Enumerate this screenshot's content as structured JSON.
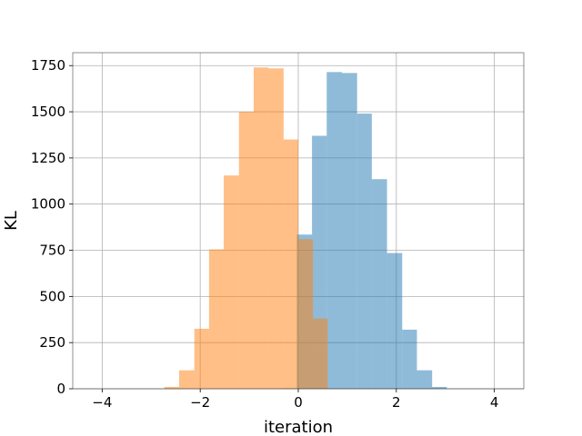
{
  "chart_data": {
    "type": "histogram",
    "xlabel": "iteration",
    "ylabel": "KL",
    "xlim": [
      -4.6,
      4.6
    ],
    "ylim": [
      0,
      1820
    ],
    "x_ticks": [
      -4,
      -2,
      0,
      2,
      4
    ],
    "x_tick_labels": [
      "−4",
      "−2",
      "0",
      "2",
      "4"
    ],
    "y_ticks": [
      0,
      250,
      500,
      750,
      1000,
      1250,
      1500,
      1750
    ],
    "y_tick_labels": [
      "0",
      "250",
      "500",
      "750",
      "1000",
      "1250",
      "1500",
      "1750"
    ],
    "grid": true,
    "series": [
      {
        "color": "#1f77b4",
        "alpha": 0.5,
        "bins": [
          {
            "x0": -0.33,
            "x1": -0.03,
            "count": 2
          },
          {
            "x0": -0.03,
            "x1": 0.28,
            "count": 835
          },
          {
            "x0": 0.28,
            "x1": 0.58,
            "count": 1370
          },
          {
            "x0": 0.58,
            "x1": 0.89,
            "count": 1715
          },
          {
            "x0": 0.89,
            "x1": 1.2,
            "count": 1710
          },
          {
            "x0": 1.2,
            "x1": 1.5,
            "count": 1490
          },
          {
            "x0": 1.5,
            "x1": 1.81,
            "count": 1135
          },
          {
            "x0": 1.81,
            "x1": 2.12,
            "count": 735
          },
          {
            "x0": 2.12,
            "x1": 2.42,
            "count": 320
          },
          {
            "x0": 2.42,
            "x1": 2.73,
            "count": 100
          },
          {
            "x0": 2.73,
            "x1": 3.03,
            "count": 10
          }
        ]
      },
      {
        "color": "#ff7f0e",
        "alpha": 0.5,
        "bins": [
          {
            "x0": -2.73,
            "x1": -2.43,
            "count": 10
          },
          {
            "x0": -2.43,
            "x1": -2.12,
            "count": 100
          },
          {
            "x0": -2.12,
            "x1": -1.82,
            "count": 325
          },
          {
            "x0": -1.82,
            "x1": -1.52,
            "count": 755
          },
          {
            "x0": -1.52,
            "x1": -1.21,
            "count": 1155
          },
          {
            "x0": -1.21,
            "x1": -0.91,
            "count": 1500
          },
          {
            "x0": -0.91,
            "x1": -0.61,
            "count": 1740
          },
          {
            "x0": -0.61,
            "x1": -0.3,
            "count": 1735
          },
          {
            "x0": -0.3,
            "x1": 0.0,
            "count": 1350
          },
          {
            "x0": 0.0,
            "x1": 0.3,
            "count": 810
          },
          {
            "x0": 0.3,
            "x1": 0.6,
            "count": 380
          }
        ]
      }
    ]
  }
}
